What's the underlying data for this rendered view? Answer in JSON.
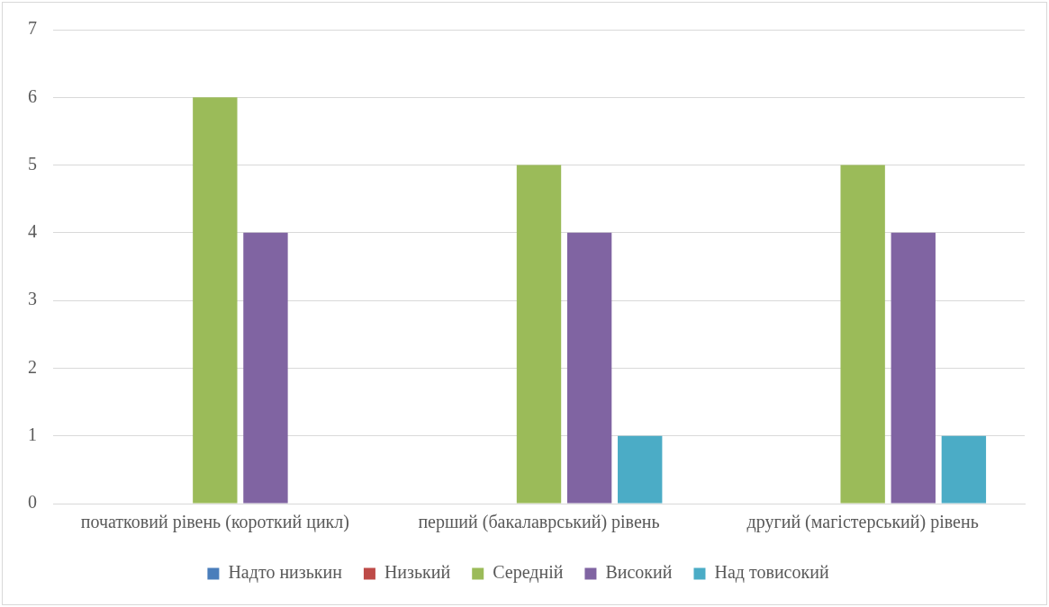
{
  "chart_data": {
    "type": "bar",
    "categories": [
      "початковий рівень (короткий цикл)",
      "перший (бакалаврський) рівень",
      "другий (магістерський) рівень"
    ],
    "series": [
      {
        "name": "Надто низькин",
        "color": "#4a7ebb",
        "values": [
          0,
          0,
          0
        ]
      },
      {
        "name": "Низький",
        "color": "#be4b48",
        "values": [
          0,
          0,
          0
        ]
      },
      {
        "name": "Середній",
        "color": "#9bbb59",
        "values": [
          6,
          5,
          5
        ]
      },
      {
        "name": "Високий",
        "color": "#8064a2",
        "values": [
          4,
          4,
          4
        ]
      },
      {
        "name": "Над товисокий",
        "color": "#4bacc6",
        "values": [
          0,
          1,
          1
        ]
      }
    ],
    "ylim": [
      0,
      7
    ],
    "yticks": [
      0,
      1,
      2,
      3,
      4,
      5,
      6,
      7
    ],
    "grid": "y",
    "legend": "bottom"
  }
}
